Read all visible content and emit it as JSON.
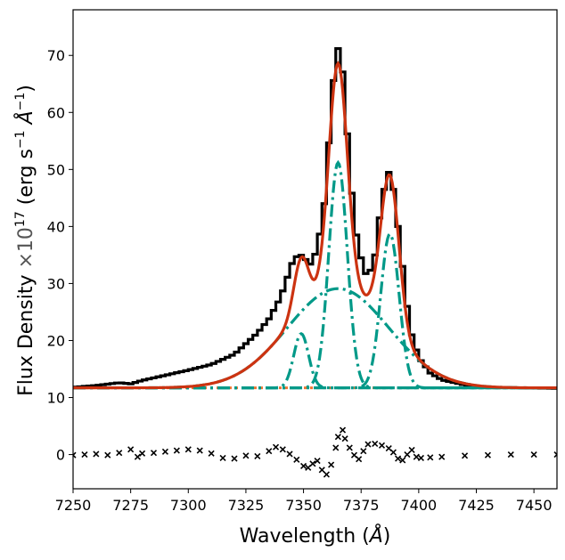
{
  "chart_data": {
    "type": "line",
    "title": "",
    "xlabel": "Wavelength",
    "xlabel_unit": "Å",
    "ylabel": "Flux Density",
    "ylabel_scale": "×10",
    "ylabel_scale_exp": "17",
    "ylabel_units": "(erg s",
    "ylabel_units_exp": "−1",
    "ylabel_unit_sym": "Å",
    "ylabel_units_exp2": "−1",
    "ylabel_close": ")",
    "xlim": [
      7250,
      7460
    ],
    "ylim": [
      -6,
      78
    ],
    "xticks": [
      7250,
      7275,
      7300,
      7325,
      7350,
      7375,
      7400,
      7425,
      7450
    ],
    "yticks": [
      0,
      10,
      20,
      30,
      40,
      50,
      60,
      70
    ],
    "grid": false,
    "legend": "none",
    "colors": {
      "observed": "#000000",
      "total_model": "#cc3311",
      "components": "#009988",
      "continuum": "#ee7733",
      "residuals": "#000000"
    },
    "continuum_level": 11.7,
    "components": [
      {
        "center": 7349,
        "amplitude": 9.5,
        "sigma": 3.2
      },
      {
        "center": 7365,
        "amplitude": 39.5,
        "sigma": 4.0
      },
      {
        "center": 7387.5,
        "amplitude": 27.0,
        "sigma": 4.0
      },
      {
        "center": 7365,
        "amplitude": 17.4,
        "sigma": 22.0
      }
    ],
    "observed_points": [
      [
        7250,
        11.8
      ],
      [
        7260,
        12.1
      ],
      [
        7270,
        12.6
      ],
      [
        7275,
        12.4
      ],
      [
        7280,
        13.0
      ],
      [
        7290,
        13.9
      ],
      [
        7300,
        14.8
      ],
      [
        7310,
        15.8
      ],
      [
        7320,
        17.6
      ],
      [
        7330,
        21.3
      ],
      [
        7335,
        23.8
      ],
      [
        7340,
        27.5
      ],
      [
        7345,
        33.5
      ],
      [
        7348,
        35.3
      ],
      [
        7350,
        34.6
      ],
      [
        7353,
        33.4
      ],
      [
        7356,
        36.0
      ],
      [
        7359,
        44.0
      ],
      [
        7362,
        60.0
      ],
      [
        7364,
        71.2
      ],
      [
        7366,
        71.2
      ],
      [
        7368,
        63.0
      ],
      [
        7370,
        49.5
      ],
      [
        7373,
        38.5
      ],
      [
        7376,
        32.5
      ],
      [
        7378,
        31.0
      ],
      [
        7381,
        35.0
      ],
      [
        7383,
        41.5
      ],
      [
        7385,
        46.5
      ],
      [
        7387,
        49.5
      ],
      [
        7389,
        46.5
      ],
      [
        7391,
        40.0
      ],
      [
        7393,
        33.0
      ],
      [
        7395,
        26.0
      ],
      [
        7397,
        21.0
      ],
      [
        7400,
        17.0
      ],
      [
        7405,
        14.3
      ],
      [
        7410,
        13.1
      ],
      [
        7420,
        12.2
      ],
      [
        7430,
        11.8
      ],
      [
        7460,
        11.6
      ]
    ],
    "residuals": [
      [
        7250,
        -0.1
      ],
      [
        7255,
        0.0
      ],
      [
        7260,
        0.1
      ],
      [
        7265,
        -0.1
      ],
      [
        7270,
        0.3
      ],
      [
        7275,
        0.9
      ],
      [
        7278,
        -0.4
      ],
      [
        7280,
        0.2
      ],
      [
        7285,
        0.3
      ],
      [
        7290,
        0.5
      ],
      [
        7295,
        0.7
      ],
      [
        7300,
        0.9
      ],
      [
        7305,
        0.7
      ],
      [
        7310,
        0.2
      ],
      [
        7315,
        -0.6
      ],
      [
        7320,
        -0.7
      ],
      [
        7325,
        -0.2
      ],
      [
        7330,
        -0.3
      ],
      [
        7335,
        0.6
      ],
      [
        7338,
        1.3
      ],
      [
        7341,
        0.9
      ],
      [
        7344,
        0.1
      ],
      [
        7347,
        -0.9
      ],
      [
        7350,
        -2.0
      ],
      [
        7352,
        -2.3
      ],
      [
        7354,
        -1.6
      ],
      [
        7356,
        -1.1
      ],
      [
        7358,
        -2.7
      ],
      [
        7360,
        -3.5
      ],
      [
        7362,
        -1.8
      ],
      [
        7364,
        1.2
      ],
      [
        7365,
        3.1
      ],
      [
        7367,
        4.3
      ],
      [
        7368,
        2.8
      ],
      [
        7370,
        1.2
      ],
      [
        7372,
        -0.1
      ],
      [
        7374,
        -0.8
      ],
      [
        7376,
        0.6
      ],
      [
        7378,
        1.8
      ],
      [
        7381,
        1.9
      ],
      [
        7384,
        1.6
      ],
      [
        7387,
        1.1
      ],
      [
        7389,
        0.4
      ],
      [
        7391,
        -0.7
      ],
      [
        7393,
        -1.0
      ],
      [
        7395,
        0.0
      ],
      [
        7397,
        0.8
      ],
      [
        7399,
        -0.4
      ],
      [
        7401,
        -0.6
      ],
      [
        7405,
        -0.5
      ],
      [
        7410,
        -0.4
      ],
      [
        7420,
        -0.2
      ],
      [
        7430,
        -0.1
      ],
      [
        7440,
        0.0
      ],
      [
        7450,
        0.0
      ],
      [
        7460,
        0.0
      ]
    ]
  }
}
